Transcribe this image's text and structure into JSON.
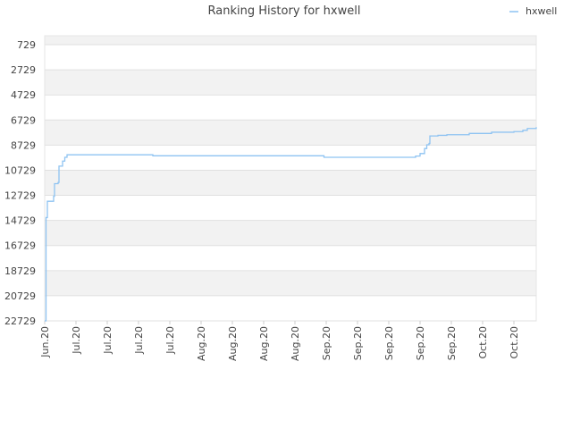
{
  "chart_data": {
    "type": "line",
    "title": "Ranking History for hxwell",
    "xlim": [
      0,
      110
    ],
    "xticks": [
      {
        "value": 0,
        "label": "Jun.20"
      },
      {
        "value": 7,
        "label": "Jul.20"
      },
      {
        "value": 14,
        "label": "Jul.20"
      },
      {
        "value": 21,
        "label": "Jul.20"
      },
      {
        "value": 28,
        "label": "Jul.20"
      },
      {
        "value": 35,
        "label": "Aug.20"
      },
      {
        "value": 42,
        "label": "Aug.20"
      },
      {
        "value": 49,
        "label": "Aug.20"
      },
      {
        "value": 56,
        "label": "Aug.20"
      },
      {
        "value": 63,
        "label": "Sep.20"
      },
      {
        "value": 70,
        "label": "Sep.20"
      },
      {
        "value": 77,
        "label": "Sep.20"
      },
      {
        "value": 84,
        "label": "Sep.20"
      },
      {
        "value": 91,
        "label": "Sep.20"
      },
      {
        "value": 98,
        "label": "Oct.20"
      },
      {
        "value": 105,
        "label": "Oct.20"
      }
    ],
    "ylim": [
      22729,
      15
    ],
    "yticks": [
      729,
      2729,
      4729,
      6729,
      8729,
      10729,
      12729,
      14729,
      16729,
      18729,
      20729,
      22729
    ],
    "grid": true,
    "legend": "top-right",
    "series": [
      {
        "name": "hxwell",
        "color": "#8ec3f2",
        "x": [
          0,
          0.3,
          0.6,
          2,
          2.2,
          3,
          3.2,
          4,
          4.5,
          5,
          24,
          24.2,
          62,
          62.5,
          82,
          83,
          84,
          85,
          85.5,
          86,
          86.2,
          88,
          90,
          95,
          100,
          105,
          107,
          108,
          110
        ],
        "values": [
          22729,
          14500,
          13200,
          12800,
          11800,
          11700,
          10400,
          10000,
          9700,
          9500,
          9500,
          9580,
          9580,
          9700,
          9700,
          9600,
          9400,
          9000,
          8700,
          8600,
          8000,
          7950,
          7900,
          7800,
          7700,
          7650,
          7550,
          7400,
          7300
        ]
      }
    ]
  }
}
